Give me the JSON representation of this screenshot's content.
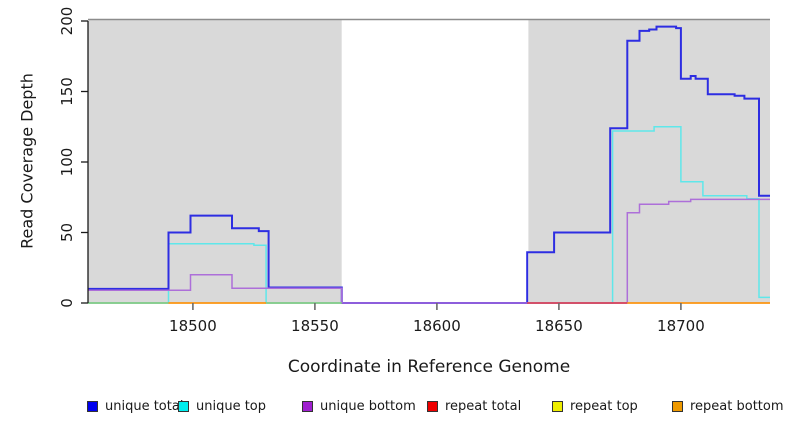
{
  "figure": {
    "xlabel": "Coordinate in Reference Genome",
    "ylabel": "Read Coverage Depth"
  },
  "chart_data": {
    "type": "line",
    "subtype": "step-coverage-plot",
    "title": "",
    "xlabel": "Coordinate in Reference Genome",
    "ylabel": "Read Coverage Depth",
    "x_range": [
      18457,
      18736.5
    ],
    "y_range": [
      0,
      200
    ],
    "x_ticks": [
      18500,
      18550,
      18600,
      18650,
      18700
    ],
    "x_tick_labels": [
      "18500",
      "18550",
      "18600",
      "18650",
      "18700"
    ],
    "y_ticks": [
      0,
      50,
      100,
      150,
      200
    ],
    "y_tick_labels": [
      "0",
      "50",
      "100",
      "150",
      "200"
    ],
    "grid": false,
    "legend_position": "bottom",
    "plot_background": "#ffffff",
    "shaded_region_color": "#d9d9d9",
    "top_border_color": "#8c8c8c",
    "axis_color": "#1a1a1a",
    "background_regions": [
      {
        "name": "unique-mapping-left",
        "x0": 18457,
        "x1": 18561,
        "color": "#d9d9d9"
      },
      {
        "name": "gap-region",
        "x0": 18561,
        "x1": 18637.5,
        "color": "#ffffff"
      },
      {
        "name": "unique-mapping-right",
        "x0": 18637.5,
        "x1": 18736.5,
        "color": "#d9d9d9"
      }
    ],
    "series": [
      {
        "name": "unique total",
        "legend_color": "#0000EE",
        "line_color": "#2d2de2",
        "line_width": 2,
        "render": "steps",
        "points": [
          [
            18457,
            10
          ],
          [
            18490,
            50
          ],
          [
            18499,
            62
          ],
          [
            18516,
            53
          ],
          [
            18527,
            51
          ],
          [
            18531,
            11
          ],
          [
            18561,
            0
          ],
          [
            18637,
            36
          ],
          [
            18648,
            50
          ],
          [
            18671,
            124
          ],
          [
            18678,
            186
          ],
          [
            18683,
            193
          ],
          [
            18687,
            194
          ],
          [
            18690,
            196
          ],
          [
            18698,
            195
          ],
          [
            18700,
            159
          ],
          [
            18704,
            161
          ],
          [
            18706,
            159
          ],
          [
            18711,
            148
          ],
          [
            18722,
            147
          ],
          [
            18726,
            145
          ],
          [
            18732,
            76
          ]
        ]
      },
      {
        "name": "unique top",
        "legend_color": "#00EEEE",
        "line_color": "#5fe7ea",
        "line_width": 1.5,
        "render": "steps",
        "points": [
          [
            18457,
            0
          ],
          [
            18490,
            42
          ],
          [
            18525,
            41
          ],
          [
            18530,
            0
          ],
          [
            18672,
            122
          ],
          [
            18689,
            125
          ],
          [
            18700,
            86
          ],
          [
            18709,
            76
          ],
          [
            18727,
            74
          ],
          [
            18732,
            4
          ]
        ]
      },
      {
        "name": "unique bottom",
        "legend_color": "#A020D0",
        "line_color": "#ad6fd9",
        "line_width": 1.5,
        "render": "steps",
        "points": [
          [
            18457,
            9
          ],
          [
            18499,
            20
          ],
          [
            18516,
            10.5
          ],
          [
            18561,
            0
          ],
          [
            18678,
            64
          ],
          [
            18683,
            70
          ],
          [
            18695,
            72
          ],
          [
            18704,
            73.5
          ]
        ]
      },
      {
        "name": "repeat total",
        "legend_color": "#EE0000",
        "line_color": "#d84358",
        "line_width": 1.8,
        "render": "baseline",
        "points": [
          [
            18457,
            0
          ]
        ]
      },
      {
        "name": "repeat top",
        "legend_color": "#EEEE00",
        "line_color": "#e8e84a",
        "line_width": 1.8,
        "render": "baseline",
        "points": [
          [
            18457,
            0
          ]
        ]
      },
      {
        "name": "repeat bottom",
        "legend_color": "#EE9900",
        "line_color": "#fb9410",
        "line_width": 1.8,
        "render": "baseline",
        "points": [
          [
            18457,
            0
          ]
        ]
      }
    ],
    "baseline_overlap_segments": [
      {
        "x0": 18457,
        "x1": 18490,
        "color": "#85ca85"
      },
      {
        "x0": 18490,
        "x1": 18530,
        "color": "#fb9410"
      },
      {
        "x0": 18530,
        "x1": 18561,
        "color": "#85ca85"
      },
      {
        "x0": 18637,
        "x1": 18678,
        "color": "#d84358"
      },
      {
        "x0": 18678,
        "x1": 18736.5,
        "color": "#fb9410"
      }
    ]
  },
  "legend": {
    "items": [
      {
        "label": "unique total",
        "color": "#0000EE"
      },
      {
        "label": "unique top",
        "color": "#00EEEE"
      },
      {
        "label": "unique bottom",
        "color": "#A020D0"
      },
      {
        "label": "repeat total",
        "color": "#EE0000"
      },
      {
        "label": "repeat top",
        "color": "#EEEE00"
      },
      {
        "label": "repeat bottom",
        "color": "#EE9900"
      }
    ]
  }
}
